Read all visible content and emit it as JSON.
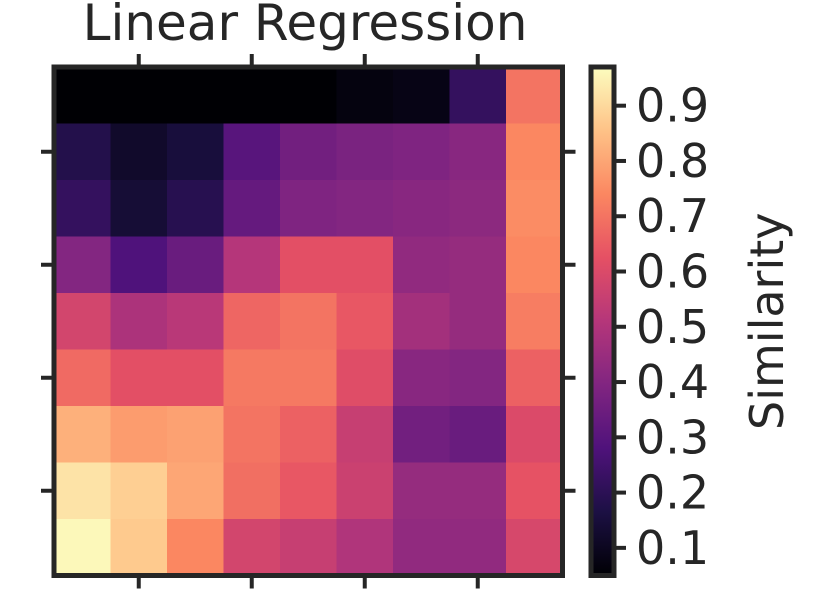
{
  "chart_data": {
    "type": "heatmap",
    "title": "Linear Regression",
    "rows": 9,
    "cols": 9,
    "values": [
      [
        0.05,
        0.02,
        0.02,
        0.03,
        0.05,
        0.07,
        0.08,
        0.22,
        0.7
      ],
      [
        0.18,
        0.12,
        0.15,
        0.3,
        0.36,
        0.38,
        0.39,
        0.41,
        0.74
      ],
      [
        0.22,
        0.14,
        0.19,
        0.33,
        0.39,
        0.4,
        0.41,
        0.42,
        0.75
      ],
      [
        0.4,
        0.28,
        0.34,
        0.51,
        0.62,
        0.62,
        0.43,
        0.44,
        0.74
      ],
      [
        0.58,
        0.49,
        0.52,
        0.67,
        0.7,
        0.64,
        0.47,
        0.44,
        0.72
      ],
      [
        0.68,
        0.62,
        0.62,
        0.71,
        0.71,
        0.61,
        0.41,
        0.4,
        0.66
      ],
      [
        0.82,
        0.78,
        0.79,
        0.7,
        0.66,
        0.55,
        0.36,
        0.34,
        0.6
      ],
      [
        0.92,
        0.88,
        0.8,
        0.69,
        0.64,
        0.56,
        0.44,
        0.44,
        0.63
      ],
      [
        0.96,
        0.87,
        0.74,
        0.58,
        0.55,
        0.5,
        0.43,
        0.43,
        0.59
      ]
    ],
    "colorbar": {
      "label": "Similarity",
      "min": 0.05,
      "max": 0.97,
      "ticks": [
        0.1,
        0.2,
        0.3,
        0.4,
        0.5,
        0.6,
        0.7,
        0.8,
        0.9
      ],
      "tick_labels": [
        "0.1",
        "0.2",
        "0.3",
        "0.4",
        "0.5",
        "0.6",
        "0.7",
        "0.8",
        "0.9"
      ]
    },
    "x_tick_labels": [],
    "y_tick_labels": [],
    "colormap": "magma",
    "colormap_stops": [
      [
        0.0,
        "#000004"
      ],
      [
        0.125,
        "#1c1044"
      ],
      [
        0.25,
        "#4f127b"
      ],
      [
        0.375,
        "#812581"
      ],
      [
        0.5,
        "#b5367a"
      ],
      [
        0.625,
        "#e55064"
      ],
      [
        0.75,
        "#fb8761"
      ],
      [
        0.875,
        "#fec287"
      ],
      [
        1.0,
        "#fcfdbf"
      ]
    ],
    "frame_color": "#262626"
  }
}
